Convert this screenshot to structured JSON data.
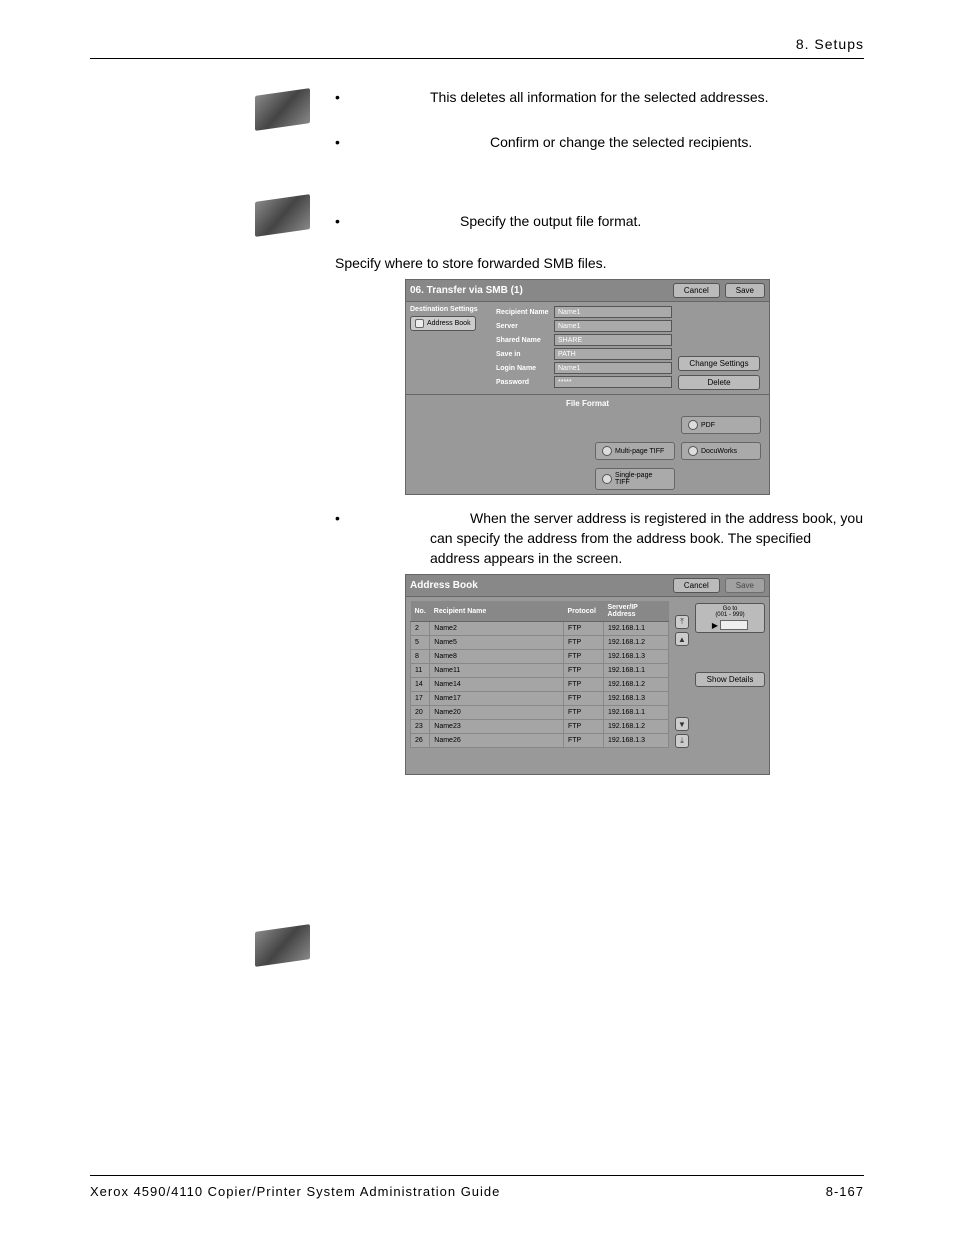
{
  "header": {
    "chapter": "8. Setups"
  },
  "bullets": {
    "b1": "This deletes all information for the selected addresses.",
    "b2": "Confirm or change the selected recipients.",
    "b3": "Specify the output file format.",
    "para": "Specify where to store forwarded SMB files.",
    "b4": "When the server address is registered in the address book, you can specify the address from the address book. The specified address appears in the screen."
  },
  "smb": {
    "title": "06. Transfer via SMB (1)",
    "cancel": "Cancel",
    "save": "Save",
    "dest_settings": "Destination Settings",
    "address_book": "Address Book",
    "fields": {
      "recipient_label": "Recipient Name",
      "recipient_val": "Name1",
      "server_label": "Server",
      "server_val": "Name1",
      "shared_label": "Shared Name",
      "shared_val": "SHARE",
      "savein_label": "Save in",
      "savein_val": "PATH",
      "login_label": "Login Name",
      "login_val": "Name1",
      "password_label": "Password",
      "password_val": "*****"
    },
    "change_settings": "Change Settings",
    "delete": "Delete",
    "file_format": "File Format",
    "pdf": "PDF",
    "multi_tiff": "Multi-page TIFF",
    "docuworks": "DocuWorks",
    "single_tiff": "Single-page TIFF"
  },
  "ab": {
    "title": "Address Book",
    "cancel": "Cancel",
    "save": "Save",
    "cols": {
      "no": "No.",
      "name": "Recipient Name",
      "proto": "Protocol",
      "addr": "Server/IP Address"
    },
    "rows": [
      {
        "no": "2",
        "name": "Name2",
        "proto": "FTP",
        "addr": "192.168.1.1"
      },
      {
        "no": "5",
        "name": "Name5",
        "proto": "FTP",
        "addr": "192.168.1.2"
      },
      {
        "no": "8",
        "name": "Name8",
        "proto": "FTP",
        "addr": "192.168.1.3"
      },
      {
        "no": "11",
        "name": "Name11",
        "proto": "FTP",
        "addr": "192.168.1.1"
      },
      {
        "no": "14",
        "name": "Name14",
        "proto": "FTP",
        "addr": "192.168.1.2"
      },
      {
        "no": "17",
        "name": "Name17",
        "proto": "FTP",
        "addr": "192.168.1.3"
      },
      {
        "no": "20",
        "name": "Name20",
        "proto": "FTP",
        "addr": "192.168.1.1"
      },
      {
        "no": "23",
        "name": "Name23",
        "proto": "FTP",
        "addr": "192.168.1.2"
      },
      {
        "no": "26",
        "name": "Name26",
        "proto": "FTP",
        "addr": "192.168.1.3"
      }
    ],
    "goto": "Go to",
    "goto_range": "(001 - 999)",
    "show_details": "Show Details"
  },
  "footer": {
    "left": "Xerox 4590/4110 Copier/Printer System Administration Guide",
    "right": "8-167"
  }
}
